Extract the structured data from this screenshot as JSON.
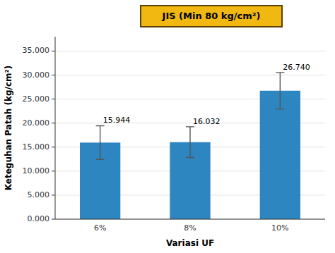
{
  "chart_data": {
    "type": "bar",
    "annotation": "JIS (Min 80 kg/cm²)",
    "xlabel": "Variasi UF",
    "ylabel": "Keteguhan Patah (kg/cm²)",
    "categories": [
      "6%",
      "8%",
      "10%"
    ],
    "values": [
      15.944,
      16.032,
      26.74
    ],
    "errors": [
      3.5,
      3.2,
      3.8
    ],
    "value_labels": [
      "15.944",
      "16.032",
      "26.740"
    ],
    "data_labels": true,
    "color": "#2E86C1",
    "ylim": [
      0,
      38
    ],
    "yticks": [
      {
        "value": 0,
        "label": "0.000"
      },
      {
        "value": 5,
        "label": "5.000"
      },
      {
        "value": 10,
        "label": "10.000"
      },
      {
        "value": 15,
        "label": "15.000"
      },
      {
        "value": 20,
        "label": "20.000"
      },
      {
        "value": 25,
        "label": "25.000"
      },
      {
        "value": 30,
        "label": "30.000"
      },
      {
        "value": 35,
        "label": "35.000"
      }
    ],
    "grid": true
  }
}
